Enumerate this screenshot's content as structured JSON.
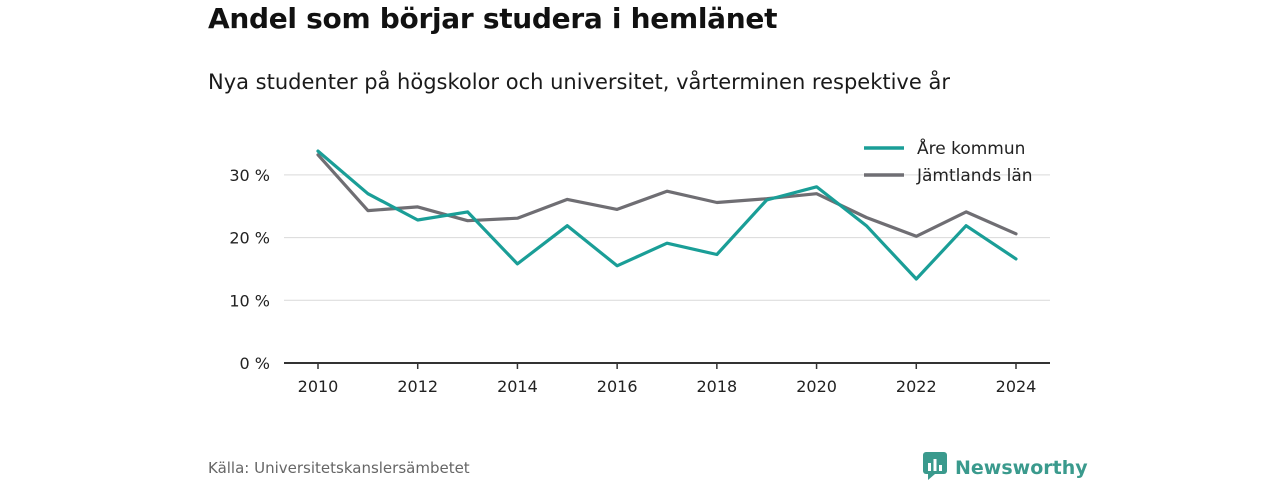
{
  "title": "Andel som börjar studera i hemlänet",
  "subtitle": "Nya studenter på högskolor och universitet, vårterminen respektive år",
  "source": "Källa: Universitetskanslersämbetet",
  "brand": {
    "name": "Newsworthy",
    "icon": "newsworthy-logo-icon",
    "color": "#3a9a8d"
  },
  "chart_data": {
    "type": "line",
    "title": "",
    "xlabel": "",
    "ylabel": "",
    "x": [
      2010,
      2011,
      2012,
      2013,
      2014,
      2015,
      2016,
      2017,
      2018,
      2019,
      2020,
      2021,
      2022,
      2023,
      2024
    ],
    "x_ticks": [
      "2010",
      "2012",
      "2014",
      "2016",
      "2018",
      "2020",
      "2022",
      "2024"
    ],
    "y_ticks": [
      "0 %",
      "10 %",
      "20 %",
      "30 %"
    ],
    "ylim": [
      0,
      35
    ],
    "grid": true,
    "legend_position": "top-right",
    "series": [
      {
        "name": "Åre kommun",
        "color": "#1a9e97",
        "values": [
          33.8,
          27.0,
          22.8,
          24.1,
          15.8,
          21.9,
          15.5,
          19.1,
          17.3,
          26.0,
          28.1,
          21.9,
          13.4,
          21.9,
          16.6
        ]
      },
      {
        "name": "Jämtlands län",
        "color": "#6f6e73",
        "values": [
          33.2,
          24.3,
          24.9,
          22.7,
          23.1,
          26.1,
          24.5,
          27.4,
          25.6,
          26.2,
          27.0,
          23.2,
          20.2,
          24.1,
          20.6
        ]
      }
    ]
  }
}
